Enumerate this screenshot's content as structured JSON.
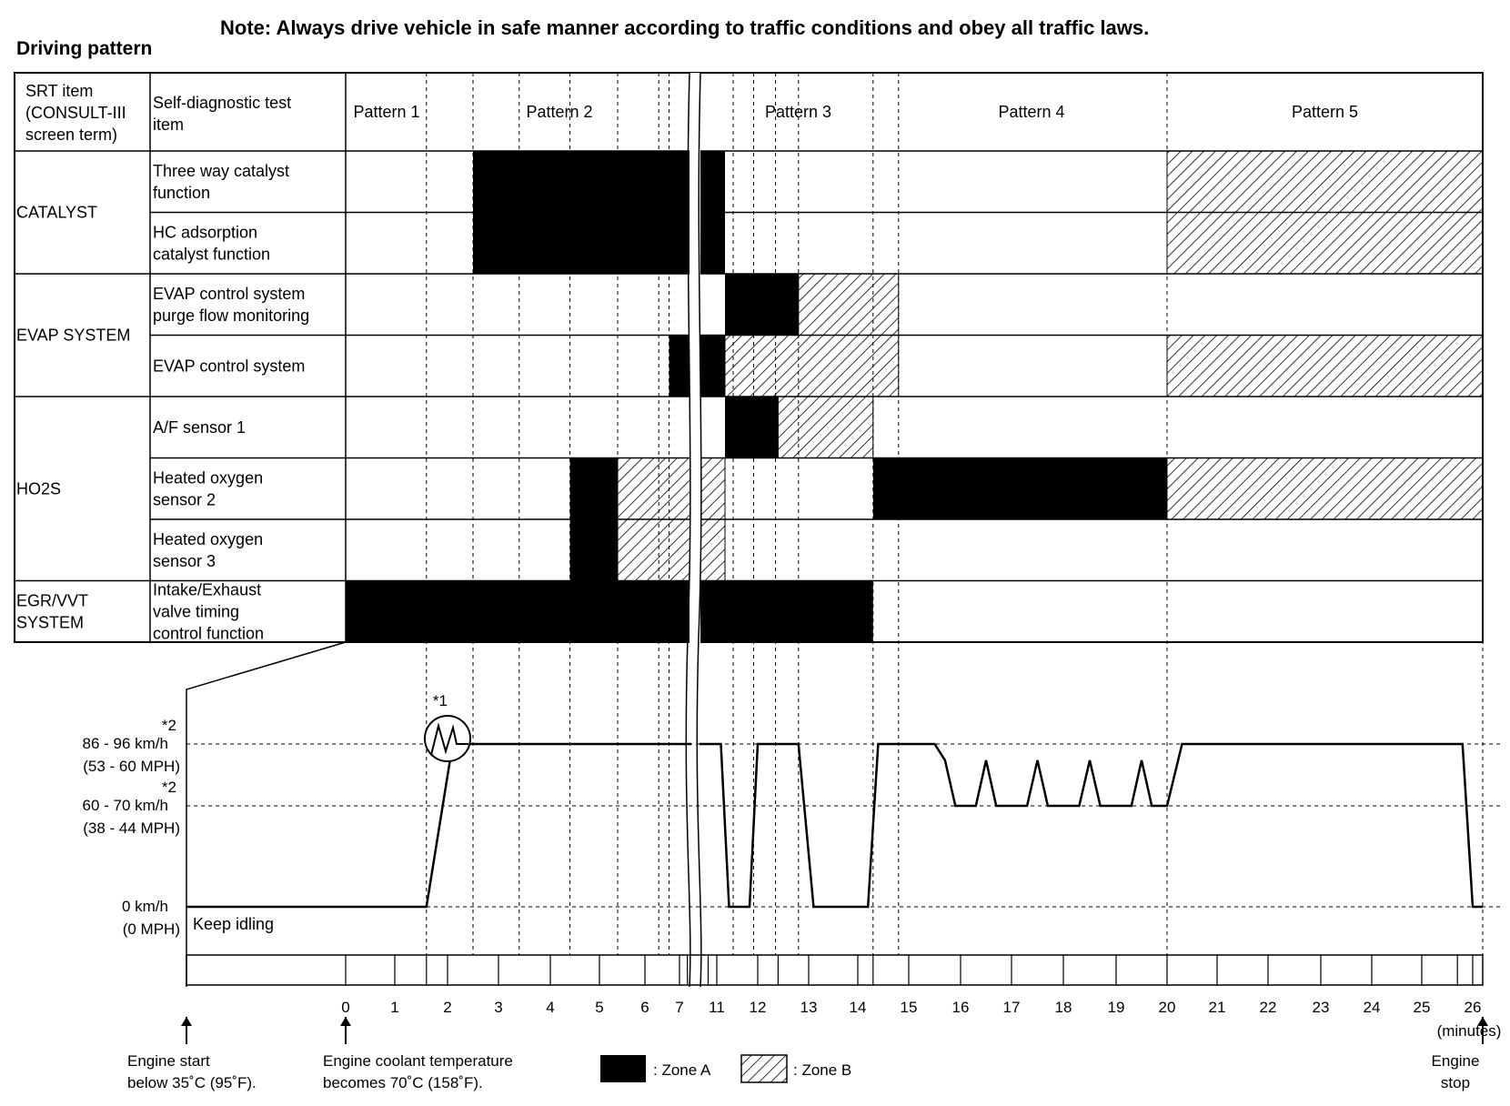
{
  "note": "Note: Always drive vehicle in safe manner according to traffic conditions and obey all traffic laws.",
  "title": "Driving pattern",
  "table": {
    "header": {
      "srt_item": [
        "SRT item",
        "(CONSULT-III",
        "screen term)"
      ],
      "test_item": [
        "Self-diagnostic test",
        "item"
      ],
      "patterns": [
        "Pattern 1",
        "Pattern 2",
        "Pattern 3",
        "Pattern 4",
        "Pattern 5"
      ]
    },
    "groups": [
      {
        "name": [
          "CATALYST"
        ]
      },
      {
        "name": [
          "EVAP SYSTEM"
        ]
      },
      {
        "name": [
          "HO2S"
        ]
      },
      {
        "name": [
          "EGR/VVT",
          "SYSTEM"
        ]
      }
    ],
    "rows": [
      {
        "label": [
          "Three way catalyst",
          "function"
        ],
        "zones": [
          {
            "type": "A",
            "from": 2.5,
            "to": 7.6
          },
          {
            "type": "A",
            "from": 10.6,
            "to": 11.2
          },
          {
            "type": "B",
            "from": 20,
            "to": 26.2
          }
        ]
      },
      {
        "label": [
          "HC adsorption",
          "catalyst function"
        ],
        "zones": [
          {
            "type": "A",
            "from": 2.5,
            "to": 7.6
          },
          {
            "type": "A",
            "from": 10.6,
            "to": 11.2
          },
          {
            "type": "B",
            "from": 20,
            "to": 26.2
          }
        ]
      },
      {
        "label": [
          "EVAP control system",
          "purge flow monitoring"
        ],
        "zones": [
          {
            "type": "A",
            "from": 11.2,
            "to": 12.8
          },
          {
            "type": "B",
            "from": 12.8,
            "to": 14.8
          }
        ]
      },
      {
        "label": [
          "EVAP control system"
        ],
        "zones": [
          {
            "type": "A",
            "from": 6.7,
            "to": 7.6
          },
          {
            "type": "A",
            "from": 10.6,
            "to": 11.2
          },
          {
            "type": "B",
            "from": 11.2,
            "to": 14.8
          },
          {
            "type": "B",
            "from": 20,
            "to": 26.2
          }
        ]
      },
      {
        "label": [
          "A/F sensor 1"
        ],
        "zones": [
          {
            "type": "A",
            "from": 11.2,
            "to": 12.4
          },
          {
            "type": "B",
            "from": 12.4,
            "to": 14.3
          }
        ]
      },
      {
        "label": [
          "Heated oxygen",
          "sensor 2"
        ],
        "zones": [
          {
            "type": "A",
            "from": 4.4,
            "to": 5.4
          },
          {
            "type": "B",
            "from": 5.4,
            "to": 7.6
          },
          {
            "type": "B",
            "from": 10.6,
            "to": 11.2
          },
          {
            "type": "A",
            "from": 14.3,
            "to": 20
          },
          {
            "type": "B",
            "from": 20,
            "to": 26.2
          }
        ]
      },
      {
        "label": [
          "Heated oxygen",
          "sensor 3"
        ],
        "zones": [
          {
            "type": "A",
            "from": 4.4,
            "to": 5.4
          },
          {
            "type": "B",
            "from": 5.4,
            "to": 7.6
          },
          {
            "type": "B",
            "from": 10.6,
            "to": 11.2
          }
        ]
      },
      {
        "label": [
          "Intake/Exhaust",
          "valve timing",
          "control function"
        ],
        "zones": [
          {
            "type": "A",
            "from": 0,
            "to": 7.6
          },
          {
            "type": "A",
            "from": 10.6,
            "to": 14.3
          }
        ]
      }
    ]
  },
  "speed_chart": {
    "levels": [
      {
        "km": "86 - 96 km/h",
        "mph": "(53 - 60 MPH)",
        "mark": "*2"
      },
      {
        "km": "60 - 70 km/h",
        "mph": "(38 - 44 MPH)",
        "mark": "*2"
      },
      {
        "km": "0 km/h",
        "mph": "(0 MPH)",
        "mark": ""
      }
    ],
    "keep_idling": "Keep idling",
    "marker_label": "*1",
    "x_ticks": [
      "0",
      "1",
      "2",
      "3",
      "4",
      "5",
      "6",
      "7",
      "11",
      "12",
      "13",
      "14",
      "15",
      "16",
      "17",
      "18",
      "19",
      "20",
      "21",
      "22",
      "23",
      "24",
      "25",
      "26"
    ],
    "x_unit": "(minutes)"
  },
  "footer": {
    "engine_start": [
      "Engine start",
      "below 35˚C (95˚F)."
    ],
    "coolant": [
      "Engine coolant temperature",
      "becomes 70˚C (158˚F)."
    ],
    "zone_a": ": Zone A",
    "zone_b": ": Zone B",
    "engine_stop": [
      "Engine",
      "stop"
    ]
  }
}
